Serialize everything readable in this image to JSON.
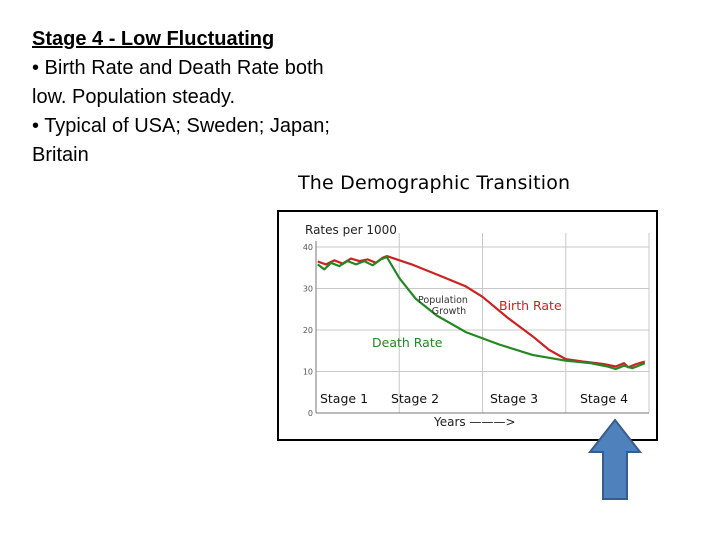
{
  "slide": {
    "title": "Stage 4 - Low Fluctuating",
    "bullets": [
      "• Birth Rate and Death Rate both low. Population steady.",
      "• Typical of USA; Sweden; Japan; Britain"
    ]
  },
  "chart_data": {
    "type": "line",
    "title": "The Demographic Transition",
    "ylabel": "Rates per 1000",
    "xlabel": "Years ———>",
    "ylim": [
      0,
      40
    ],
    "yticks": [
      0,
      10,
      20,
      30,
      40
    ],
    "stages": [
      "Stage 1",
      "Stage 2",
      "Stage 3",
      "Stage 4"
    ],
    "x_range": [
      0,
      4
    ],
    "annotations": {
      "population_growth": "Population Growth"
    },
    "series": [
      {
        "name": "Birth Rate",
        "color": "#cc2222",
        "points": [
          [
            0.02,
            36.5
          ],
          [
            0.12,
            35.8
          ],
          [
            0.22,
            36.8
          ],
          [
            0.32,
            36.0
          ],
          [
            0.42,
            37.2
          ],
          [
            0.52,
            36.6
          ],
          [
            0.62,
            37.0
          ],
          [
            0.72,
            36.2
          ],
          [
            0.8,
            37.4
          ],
          [
            0.85,
            37.8
          ],
          [
            1.15,
            35.8
          ],
          [
            1.5,
            33.0
          ],
          [
            1.8,
            30.5
          ],
          [
            2.0,
            28.0
          ],
          [
            2.3,
            23.0
          ],
          [
            2.6,
            18.5
          ],
          [
            2.8,
            15.2
          ],
          [
            3.0,
            13.0
          ],
          [
            3.2,
            12.4
          ],
          [
            3.45,
            11.8
          ],
          [
            3.6,
            11.2
          ],
          [
            3.7,
            12.0
          ],
          [
            3.75,
            11.0
          ],
          [
            3.85,
            11.8
          ],
          [
            3.95,
            12.4
          ]
        ]
      },
      {
        "name": "Death Rate",
        "color": "#228822",
        "points": [
          [
            0.02,
            35.8
          ],
          [
            0.1,
            34.6
          ],
          [
            0.18,
            36.2
          ],
          [
            0.28,
            35.4
          ],
          [
            0.38,
            36.6
          ],
          [
            0.48,
            35.8
          ],
          [
            0.58,
            36.6
          ],
          [
            0.68,
            35.6
          ],
          [
            0.78,
            37.0
          ],
          [
            0.85,
            37.6
          ],
          [
            1.0,
            32.5
          ],
          [
            1.2,
            27.5
          ],
          [
            1.45,
            23.5
          ],
          [
            1.8,
            19.5
          ],
          [
            2.2,
            16.5
          ],
          [
            2.6,
            14.0
          ],
          [
            3.0,
            12.6
          ],
          [
            3.3,
            12.0
          ],
          [
            3.5,
            11.2
          ],
          [
            3.6,
            10.6
          ],
          [
            3.7,
            11.4
          ],
          [
            3.8,
            10.8
          ],
          [
            3.9,
            11.6
          ],
          [
            3.95,
            12.0
          ]
        ]
      }
    ]
  }
}
